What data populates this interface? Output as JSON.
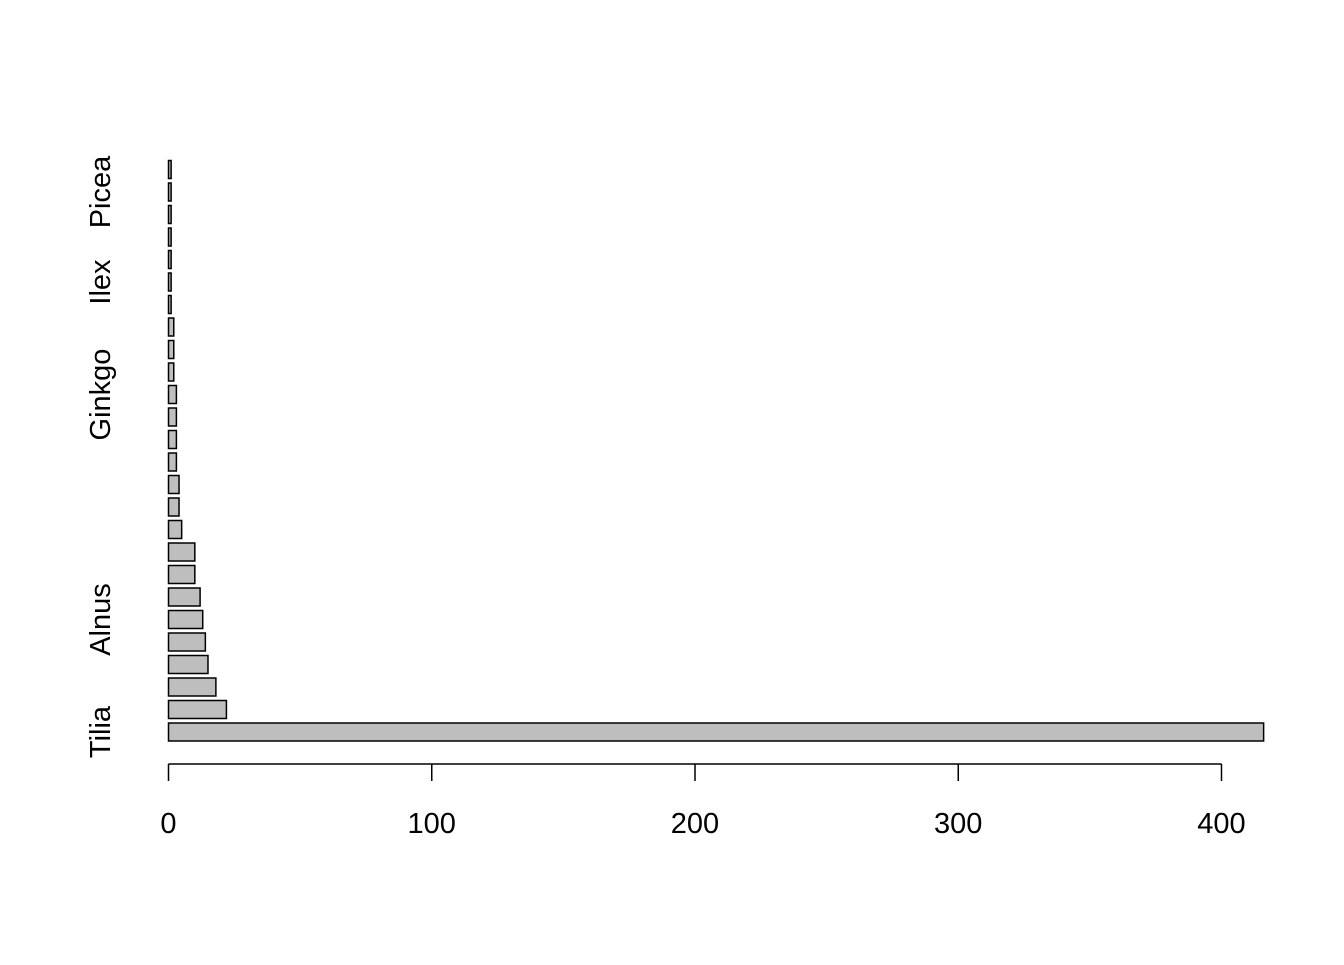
{
  "chart_data": {
    "type": "bar",
    "orientation": "horizontal",
    "title": "",
    "xlabel": "",
    "ylabel": "",
    "xlim": [
      0,
      416
    ],
    "x_ticks": [
      0,
      100,
      200,
      300,
      400
    ],
    "y_tick_labels": [
      "Tilia",
      "Alnus",
      "Ginkgo",
      "Ilex",
      "Picea"
    ],
    "y_tick_label_bar_index": [
      0,
      5,
      15,
      20,
      24
    ],
    "values": [
      416,
      22,
      18,
      15,
      14,
      13,
      12,
      10,
      10,
      5,
      4,
      4,
      3,
      3,
      3,
      3,
      2,
      2,
      2,
      1,
      1,
      1,
      1,
      1,
      1,
      1
    ],
    "grid": false,
    "legend": "none",
    "colors": {
      "bar_fill": "#bebebe",
      "bar_stroke": "#000000",
      "axis": "#000000",
      "text": "#000000"
    }
  }
}
